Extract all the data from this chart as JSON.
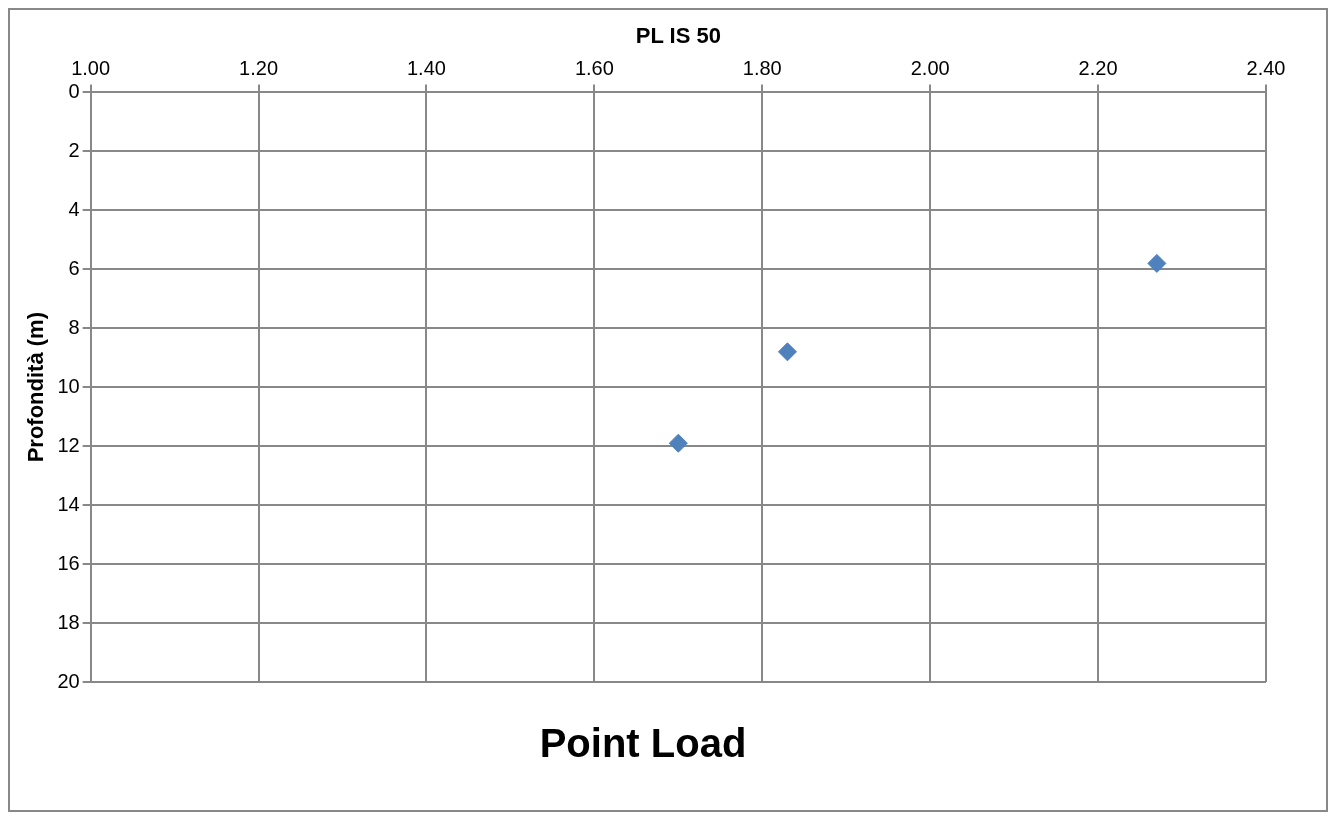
{
  "chart_data": {
    "type": "scatter",
    "title": "Point Load",
    "xlabel": "PL IS 50",
    "ylabel": "Profondità (m)",
    "series": [
      {
        "color": "#4f81bd",
        "x": [
          1.7,
          1.83,
          2.27
        ],
        "values": [
          11.9,
          8.8,
          5.8
        ]
      }
    ],
    "xlim": [
      1.0,
      2.4
    ],
    "xticks": [
      {
        "value": 1.0,
        "label": "1.00"
      },
      {
        "value": 1.2,
        "label": "1.20"
      },
      {
        "value": 1.4,
        "label": "1.40"
      },
      {
        "value": 1.6,
        "label": "1.60"
      },
      {
        "value": 1.8,
        "label": "1.80"
      },
      {
        "value": 2.0,
        "label": "2.00"
      },
      {
        "value": 2.2,
        "label": "2.20"
      },
      {
        "value": 2.4,
        "label": "2.40"
      }
    ],
    "ylim": [
      20,
      0
    ],
    "yticks": [
      0,
      2,
      4,
      6,
      8,
      10,
      12,
      14,
      16,
      18,
      20
    ],
    "grid": true,
    "marker": "diamond",
    "legend": false
  }
}
